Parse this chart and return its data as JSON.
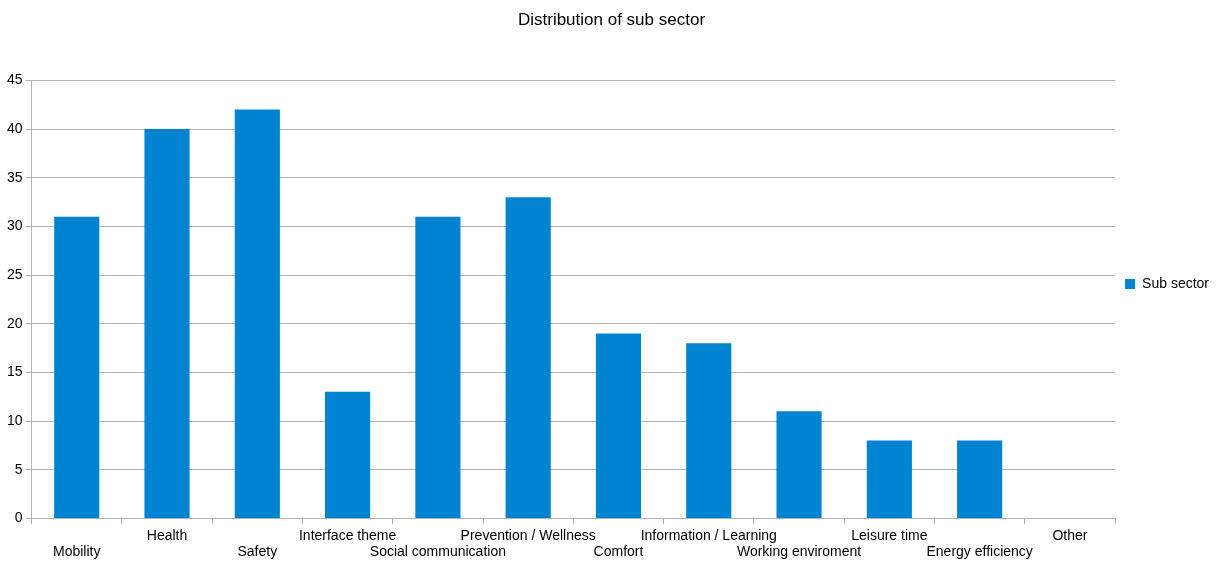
{
  "chart_data": {
    "type": "bar",
    "title": "Distribution of sub sector",
    "categories": [
      "Mobility",
      "Health",
      "Safety",
      "Interface theme",
      "Social communication",
      "Prevention / Wellness",
      "Comfort",
      "Information / Learning",
      "Working enviroment",
      "Leisure time",
      "Energy efficiency",
      "Other"
    ],
    "series": [
      {
        "name": "Sub sector",
        "color": "#0083d1",
        "values": [
          31,
          40,
          42,
          13,
          31,
          33,
          19,
          18,
          11,
          8,
          8,
          0
        ]
      }
    ],
    "ylim": [
      0,
      45
    ],
    "yticks": [
      0,
      5,
      10,
      15,
      20,
      25,
      30,
      35,
      40,
      45
    ],
    "grid": "y",
    "legend": "right"
  }
}
